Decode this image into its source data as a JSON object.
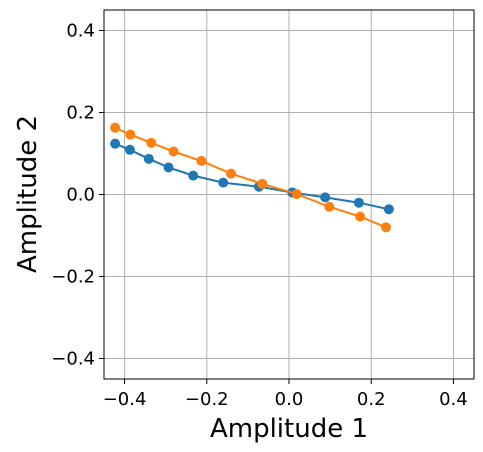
{
  "chart_data": {
    "type": "line",
    "title": "",
    "xlabel": "Amplitude 1",
    "ylabel": "Amplitude 2",
    "xlim": [
      -0.45,
      0.45
    ],
    "ylim": [
      -0.45,
      0.45
    ],
    "xticks": [
      -0.4,
      -0.2,
      0.0,
      0.2,
      0.4
    ],
    "yticks": [
      -0.4,
      -0.2,
      0.0,
      0.2,
      0.4
    ],
    "xtick_labels": [
      "−0.4",
      "−0.2",
      "0.0",
      "0.2",
      "0.4"
    ],
    "ytick_labels": [
      "−0.4",
      "−0.2",
      "0.0",
      "0.2",
      "0.4"
    ],
    "grid": true,
    "markers": "circle",
    "series": [
      {
        "color": "#1f77b4",
        "x": [
          -0.423,
          -0.387,
          -0.341,
          -0.293,
          -0.233,
          -0.16,
          -0.073,
          0.008,
          0.088,
          0.17,
          0.243
        ],
        "y": [
          0.124,
          0.109,
          0.087,
          0.066,
          0.046,
          0.029,
          0.019,
          0.005,
          -0.007,
          -0.02,
          -0.036
        ]
      },
      {
        "color": "#ff7f0e",
        "x": [
          -0.423,
          -0.386,
          -0.335,
          -0.281,
          -0.213,
          -0.141,
          -0.065,
          0.019,
          0.098,
          0.173,
          0.236
        ],
        "y": [
          0.163,
          0.146,
          0.126,
          0.105,
          0.082,
          0.051,
          0.026,
          0.001,
          -0.03,
          -0.054,
          -0.08
        ]
      }
    ]
  }
}
